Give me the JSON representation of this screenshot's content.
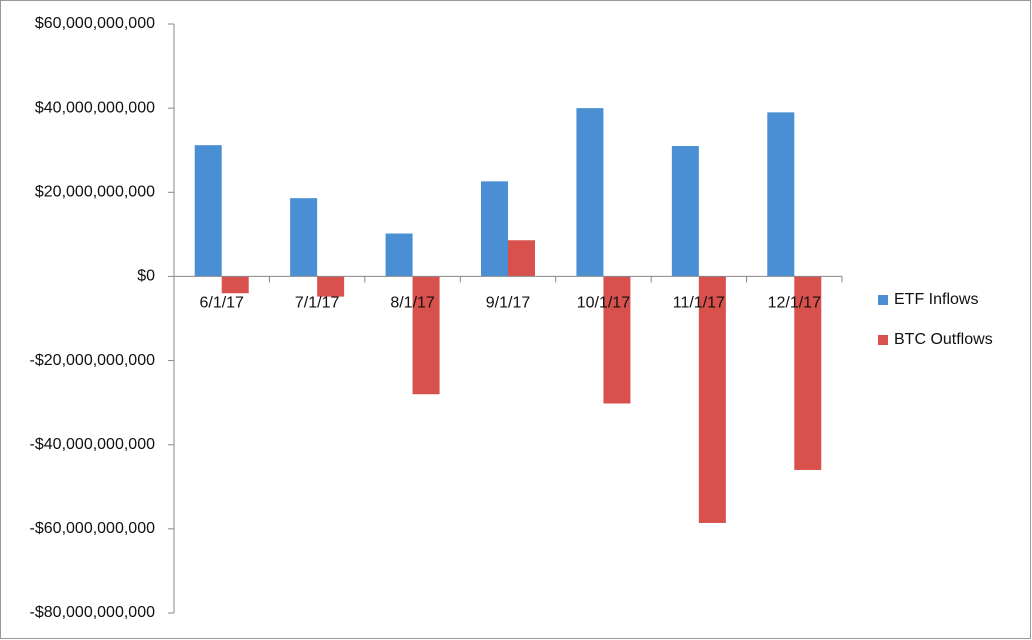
{
  "chart_data": {
    "type": "bar",
    "categories": [
      "6/1/17",
      "7/1/17",
      "8/1/17",
      "9/1/17",
      "10/1/17",
      "11/1/17",
      "12/1/17"
    ],
    "series": [
      {
        "name": "ETF Inflows",
        "color": "#4a8fd3",
        "values": [
          31200000000,
          18600000000,
          10200000000,
          22600000000,
          40000000000,
          31000000000,
          39000000000
        ]
      },
      {
        "name": "BTC Outflows",
        "color": "#d9514c",
        "values": [
          -4000000000,
          -4800000000,
          -28000000000,
          8600000000,
          -30200000000,
          -58600000000,
          -46000000000
        ]
      }
    ],
    "ylim": [
      -80000000000,
      60000000000
    ],
    "yticks": [
      {
        "value": -80000000000,
        "label": "-$80,000,000,000"
      },
      {
        "value": -60000000000,
        "label": "-$60,000,000,000"
      },
      {
        "value": -40000000000,
        "label": "-$40,000,000,000"
      },
      {
        "value": -20000000000,
        "label": "-$20,000,000,000"
      },
      {
        "value": 0,
        "label": "$0"
      },
      {
        "value": 20000000000,
        "label": "$20,000,000,000"
      },
      {
        "value": 40000000000,
        "label": "$40,000,000,000"
      },
      {
        "value": 60000000000,
        "label": "$60,000,000,000"
      }
    ],
    "grid": false,
    "legend": "right"
  }
}
